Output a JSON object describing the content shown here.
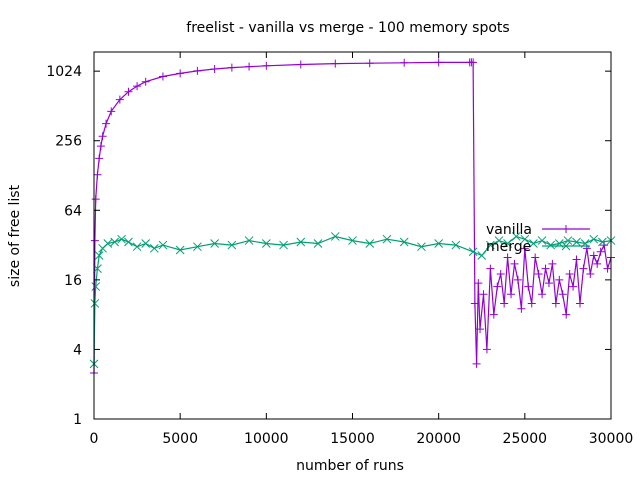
{
  "chart_data": {
    "type": "line",
    "title": "freelist - vanilla vs merge - 100 memory spots",
    "xlabel": "number of runs",
    "ylabel": "size of free list",
    "xlim": [
      0,
      30000
    ],
    "ylim": [
      1,
      1500
    ],
    "y_scale": "log2",
    "x_ticks": [
      0,
      5000,
      10000,
      15000,
      20000,
      25000,
      30000
    ],
    "x_tick_labels": [
      "0",
      "5000",
      "10000",
      "15000",
      "20000",
      "25000",
      "30000"
    ],
    "y_ticks": [
      1,
      4,
      16,
      64,
      256,
      1024
    ],
    "y_tick_labels": [
      "1",
      "4",
      "16",
      "64",
      "256",
      "1024"
    ],
    "grid": false,
    "legend_position": "right",
    "series": [
      {
        "name": "vanilla",
        "color": "#9400d3",
        "marker": "plus",
        "x": [
          0,
          50,
          100,
          200,
          300,
          400,
          500,
          700,
          1000,
          1500,
          2000,
          2500,
          3000,
          4000,
          5000,
          6000,
          7000,
          8000,
          9000,
          10000,
          12000,
          14000,
          16000,
          18000,
          20000,
          21800,
          21900,
          22000,
          22100,
          22200,
          22300,
          22400,
          22600,
          22800,
          23000,
          23200,
          23400,
          23600,
          23800,
          24000,
          24200,
          24400,
          24600,
          24800,
          25000,
          25200,
          25400,
          25600,
          25800,
          26000,
          26200,
          26400,
          26600,
          26800,
          27000,
          27200,
          27400,
          27600,
          27800,
          28000,
          28200,
          28400,
          28600,
          28800,
          29000,
          29200,
          29400,
          29600,
          29800,
          30000
        ],
        "y": [
          2.5,
          35,
          80,
          130,
          180,
          230,
          280,
          360,
          460,
          580,
          680,
          760,
          830,
          920,
          980,
          1030,
          1070,
          1100,
          1120,
          1140,
          1170,
          1190,
          1200,
          1210,
          1220,
          1220,
          1220,
          1220,
          10,
          3,
          15,
          6,
          12,
          4,
          20,
          8,
          14,
          18,
          10,
          25,
          12,
          22,
          16,
          9,
          30,
          14,
          10,
          25,
          18,
          12,
          20,
          15,
          22,
          10,
          16,
          12,
          8,
          18,
          14,
          24,
          10,
          20,
          30,
          18,
          26,
          22,
          28,
          32,
          20,
          25
        ]
      },
      {
        "name": "merge",
        "color": "#009e73",
        "marker": "x",
        "x": [
          0,
          50,
          100,
          200,
          300,
          500,
          800,
          1200,
          1600,
          2000,
          2500,
          3000,
          3500,
          4000,
          5000,
          6000,
          7000,
          8000,
          9000,
          10000,
          11000,
          12000,
          13000,
          14000,
          15000,
          16000,
          17000,
          18000,
          19000,
          20000,
          21000,
          22000,
          22500,
          23000,
          23500,
          24000,
          24500,
          25000,
          25500,
          26000,
          26500,
          27000,
          27500,
          28000,
          28500,
          29000,
          29500,
          30000
        ],
        "y": [
          3,
          10,
          14,
          20,
          26,
          30,
          33,
          34,
          36,
          34,
          31,
          33,
          30,
          32,
          29,
          31,
          33,
          32,
          35,
          33,
          32,
          34,
          33,
          38,
          35,
          33,
          36,
          34,
          31,
          33,
          32,
          28,
          26,
          32,
          35,
          33,
          38,
          36,
          33,
          35,
          32,
          33,
          35,
          34,
          33,
          36,
          34,
          35
        ]
      }
    ]
  }
}
